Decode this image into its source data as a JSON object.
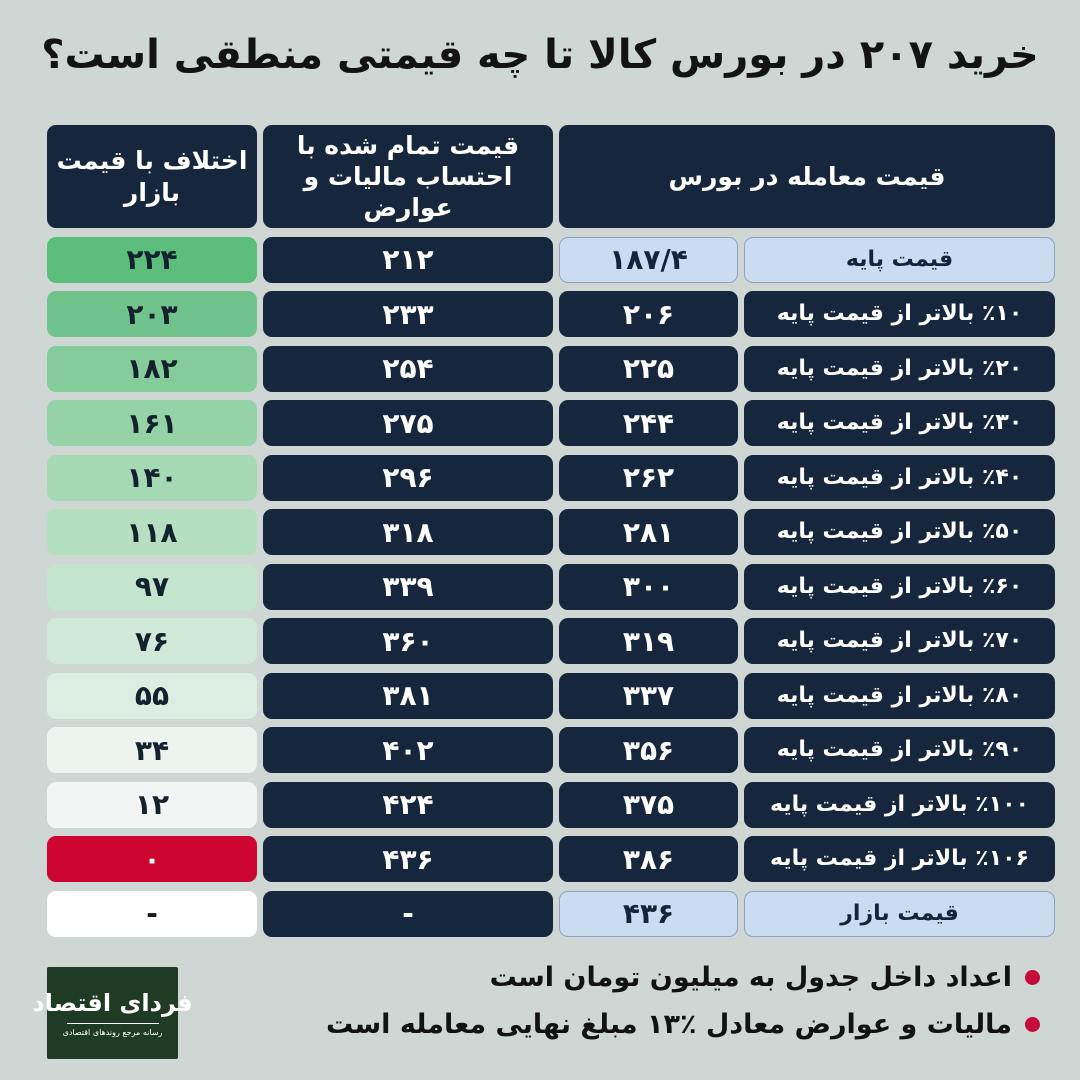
{
  "title": "خرید ۲۰۷ در بورس کالا تا چه قیمتی منطقی است؟",
  "table": {
    "header": {
      "trade": "قیمت معامله در بورس",
      "total": "قیمت تمام شده با\nاحتساب مالیات و عوارض",
      "diff": "اختلاف با قیمت بازار"
    },
    "rows": [
      {
        "label": "قیمت پایه",
        "trade": "۱۸۷/۴",
        "total": "۲۱۲",
        "diff": "۲۲۴",
        "highlight": true,
        "diff_bg": "#5dbd7b",
        "diff_fg": "#14212f"
      },
      {
        "label": "٪۱۰ بالاتر از قیمت پایه",
        "trade": "۲۰۶",
        "total": "۲۳۳",
        "diff": "۲۰۳",
        "highlight": false,
        "diff_bg": "#70c48b",
        "diff_fg": "#14212f"
      },
      {
        "label": "٪۲۰ بالاتر از قیمت پایه",
        "trade": "۲۲۵",
        "total": "۲۵۴",
        "diff": "۱۸۲",
        "highlight": false,
        "diff_bg": "#84cc99",
        "diff_fg": "#14212f"
      },
      {
        "label": "٪۳۰ بالاتر از قیمت پایه",
        "trade": "۲۴۴",
        "total": "۲۷۵",
        "diff": "۱۶۱",
        "highlight": false,
        "diff_bg": "#95d3a6",
        "diff_fg": "#14212f"
      },
      {
        "label": "٪۴۰ بالاتر از قیمت پایه",
        "trade": "۲۶۲",
        "total": "۲۹۶",
        "diff": "۱۴۰",
        "highlight": false,
        "diff_bg": "#a4d9b3",
        "diff_fg": "#14212f"
      },
      {
        "label": "٪۵۰ بالاتر از قیمت پایه",
        "trade": "۲۸۱",
        "total": "۳۱۸",
        "diff": "۱۱۸",
        "highlight": false,
        "diff_bg": "#b5dfc1",
        "diff_fg": "#14212f"
      },
      {
        "label": "٪۶۰ بالاتر از قیمت پایه",
        "trade": "۳۰۰",
        "total": "۳۳۹",
        "diff": "۹۷",
        "highlight": false,
        "diff_bg": "#c3e4cd",
        "diff_fg": "#14212f"
      },
      {
        "label": "٪۷۰ بالاتر از قیمت پایه",
        "trade": "۳۱۹",
        "total": "۳۶۰",
        "diff": "۷۶",
        "highlight": false,
        "diff_bg": "#d0e9d8",
        "diff_fg": "#14212f"
      },
      {
        "label": "٪۸۰ بالاتر از قیمت پایه",
        "trade": "۳۳۷",
        "total": "۳۸۱",
        "diff": "۵۵",
        "highlight": false,
        "diff_bg": "#dcede1",
        "diff_fg": "#14212f"
      },
      {
        "label": "٪۹۰ بالاتر از قیمت پایه",
        "trade": "۳۵۶",
        "total": "۴۰۲",
        "diff": "۳۴",
        "highlight": false,
        "diff_bg": "#edf3ef",
        "diff_fg": "#14212f"
      },
      {
        "label": "٪۱۰۰ بالاتر از قیمت پایه",
        "trade": "۳۷۵",
        "total": "۴۲۴",
        "diff": "۱۲",
        "highlight": false,
        "diff_bg": "#f1f5f3",
        "diff_fg": "#14212f"
      },
      {
        "label": "٪۱۰۶ بالاتر از قیمت پایه",
        "trade": "۳۸۶",
        "total": "۴۳۶",
        "diff": "۰",
        "highlight": false,
        "diff_bg": "#ce0531",
        "diff_fg": "#ffffff"
      },
      {
        "label": "قیمت بازار",
        "trade": "۴۳۶",
        "total": "-",
        "diff": "-",
        "highlight": true,
        "diff_bg": "#ffffff",
        "diff_fg": "#1c1c1c"
      }
    ]
  },
  "footnotes": [
    {
      "text": "اعداد داخل جدول به میلیون تومان است"
    },
    {
      "text": "مالیات و عوارض معادل ٪۱۳ مبلغ نهایی معامله است"
    }
  ],
  "footnote_bullet_color": "#c60b3a",
  "logo": {
    "name": "فردای اقتصاد",
    "tagline": "رسانه مرجع روندهای اقتصادی",
    "bg": "#1f3b23"
  },
  "colors": {
    "background": "#ced7d4",
    "navy": "#16273d",
    "light_blue": "#cbdcf1",
    "red": "#ce0531",
    "green_top": "#5dbd7b"
  },
  "chart_data": {
    "type": "table",
    "title": "خرید ۲۰۷ در بورس کالا تا چه قیمتی منطقی است؟",
    "unit": "میلیون تومان",
    "columns": [
      "قیمت معامله در بورس",
      "قیمت تمام شده با احتساب مالیات و عوارض",
      "اختلاف با قیمت بازار"
    ],
    "rows": [
      {
        "label": "قیمت پایه",
        "percent_above_base": 0,
        "trade_price": 187.4,
        "total_price": 212,
        "diff_with_market": 224
      },
      {
        "label": "۱۰٪ بالاتر از قیمت پایه",
        "percent_above_base": 10,
        "trade_price": 206,
        "total_price": 233,
        "diff_with_market": 203
      },
      {
        "label": "۲۰٪ بالاتر از قیمت پایه",
        "percent_above_base": 20,
        "trade_price": 225,
        "total_price": 254,
        "diff_with_market": 182
      },
      {
        "label": "۳۰٪ بالاتر از قیمت پایه",
        "percent_above_base": 30,
        "trade_price": 244,
        "total_price": 275,
        "diff_with_market": 161
      },
      {
        "label": "۴۰٪ بالاتر از قیمت پایه",
        "percent_above_base": 40,
        "trade_price": 262,
        "total_price": 296,
        "diff_with_market": 140
      },
      {
        "label": "۵۰٪ بالاتر از قیمت پایه",
        "percent_above_base": 50,
        "trade_price": 281,
        "total_price": 318,
        "diff_with_market": 118
      },
      {
        "label": "۶۰٪ بالاتر از قیمت پایه",
        "percent_above_base": 60,
        "trade_price": 300,
        "total_price": 339,
        "diff_with_market": 97
      },
      {
        "label": "۷۰٪ بالاتر از قیمت پایه",
        "percent_above_base": 70,
        "trade_price": 319,
        "total_price": 360,
        "diff_with_market": 76
      },
      {
        "label": "۸۰٪ بالاتر از قیمت پایه",
        "percent_above_base": 80,
        "trade_price": 337,
        "total_price": 381,
        "diff_with_market": 55
      },
      {
        "label": "۹۰٪ بالاتر از قیمت پایه",
        "percent_above_base": 90,
        "trade_price": 356,
        "total_price": 402,
        "diff_with_market": 34
      },
      {
        "label": "۱۰۰٪ بالاتر از قیمت پایه",
        "percent_above_base": 100,
        "trade_price": 375,
        "total_price": 424,
        "diff_with_market": 12
      },
      {
        "label": "۱۰۶٪ بالاتر از قیمت پایه",
        "percent_above_base": 106,
        "trade_price": 386,
        "total_price": 436,
        "diff_with_market": 0
      },
      {
        "label": "قیمت بازار",
        "percent_above_base": null,
        "trade_price": 436,
        "total_price": null,
        "diff_with_market": null
      }
    ]
  }
}
